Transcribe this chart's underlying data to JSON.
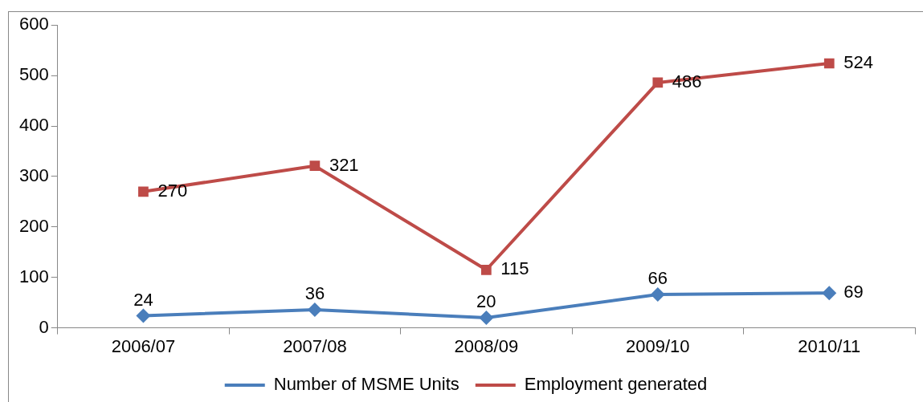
{
  "chart_data": {
    "type": "line",
    "categories": [
      "2006/07",
      "2007/08",
      "2008/09",
      "2009/10",
      "2010/11"
    ],
    "series": [
      {
        "name": "Number of MSME Units",
        "color": "#4a7ebb",
        "marker": "diamond",
        "values": [
          24,
          36,
          20,
          66,
          69
        ]
      },
      {
        "name": "Employment generated",
        "color": "#be4b48",
        "marker": "square",
        "values": [
          270,
          321,
          115,
          486,
          524
        ]
      }
    ],
    "ylim": [
      0,
      600
    ],
    "yticks": [
      0,
      100,
      200,
      300,
      400,
      500,
      600
    ],
    "grid": false,
    "legend": "bottom",
    "data_labels": true,
    "line_style": "solid"
  }
}
